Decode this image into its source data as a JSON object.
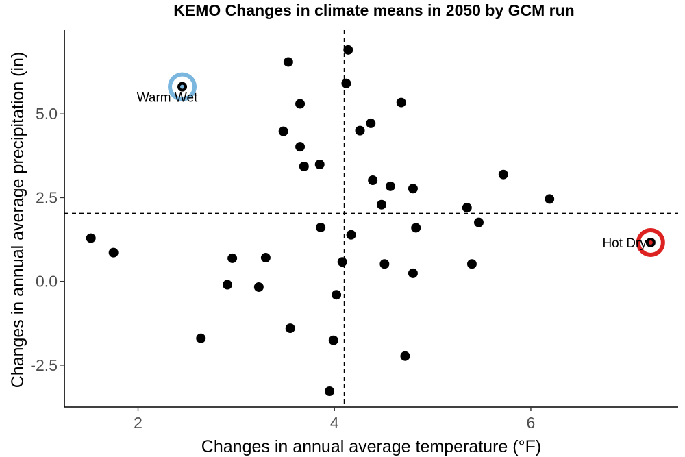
{
  "chart_data": {
    "type": "scatter",
    "title": "KEMO Changes in climate means in 2050 by GCM run",
    "xlabel": "Changes in annual average temperature (°F)",
    "ylabel": "Changes in annual average precipitation (in)",
    "xlim": [
      1.25,
      7.5
    ],
    "ylim": [
      -3.75,
      7.5
    ],
    "x_ticks": [
      {
        "value": 2,
        "label": "2"
      },
      {
        "value": 4,
        "label": "4"
      },
      {
        "value": 6,
        "label": "6"
      }
    ],
    "y_ticks": [
      {
        "value": -2.5,
        "label": "-2.5"
      },
      {
        "value": 0,
        "label": "0.0"
      },
      {
        "value": 2.5,
        "label": "2.5"
      },
      {
        "value": 5,
        "label": "5.0"
      }
    ],
    "reference_lines": {
      "x": 4.1,
      "y": 2.03
    },
    "grid": false,
    "point_color": "#000000",
    "points": [
      {
        "x": 1.52,
        "y": 1.29
      },
      {
        "x": 1.75,
        "y": 0.86
      },
      {
        "x": 2.45,
        "y": 5.81
      },
      {
        "x": 2.64,
        "y": -1.7
      },
      {
        "x": 2.91,
        "y": -0.1
      },
      {
        "x": 2.96,
        "y": 0.69
      },
      {
        "x": 3.23,
        "y": -0.17
      },
      {
        "x": 3.3,
        "y": 0.71
      },
      {
        "x": 3.48,
        "y": 4.48
      },
      {
        "x": 3.53,
        "y": 6.55
      },
      {
        "x": 3.55,
        "y": -1.4
      },
      {
        "x": 3.65,
        "y": 5.3
      },
      {
        "x": 3.65,
        "y": 4.02
      },
      {
        "x": 3.69,
        "y": 3.43
      },
      {
        "x": 3.85,
        "y": 3.49
      },
      {
        "x": 3.86,
        "y": 1.61
      },
      {
        "x": 3.95,
        "y": -3.28
      },
      {
        "x": 3.99,
        "y": -1.76
      },
      {
        "x": 4.02,
        "y": -0.4
      },
      {
        "x": 4.08,
        "y": 0.58
      },
      {
        "x": 4.12,
        "y": 5.91
      },
      {
        "x": 4.14,
        "y": 6.91
      },
      {
        "x": 4.17,
        "y": 1.39
      },
      {
        "x": 4.26,
        "y": 4.5
      },
      {
        "x": 4.37,
        "y": 4.72
      },
      {
        "x": 4.39,
        "y": 3.02
      },
      {
        "x": 4.48,
        "y": 2.29
      },
      {
        "x": 4.51,
        "y": 0.52
      },
      {
        "x": 4.57,
        "y": 2.84
      },
      {
        "x": 4.68,
        "y": 5.34
      },
      {
        "x": 4.72,
        "y": -2.23
      },
      {
        "x": 4.8,
        "y": 2.77
      },
      {
        "x": 4.8,
        "y": 0.24
      },
      {
        "x": 4.83,
        "y": 1.6
      },
      {
        "x": 5.35,
        "y": 2.2
      },
      {
        "x": 5.4,
        "y": 0.52
      },
      {
        "x": 5.47,
        "y": 1.76
      },
      {
        "x": 5.72,
        "y": 3.19
      },
      {
        "x": 6.19,
        "y": 2.46
      },
      {
        "x": 7.22,
        "y": 1.16
      }
    ],
    "highlights": [
      {
        "label": "Warm Wet",
        "x": 2.45,
        "y": 5.81,
        "color": "#7bb6df"
      },
      {
        "label": "Hot Dry",
        "x": 7.22,
        "y": 1.16,
        "color": "#dd2222"
      }
    ]
  }
}
